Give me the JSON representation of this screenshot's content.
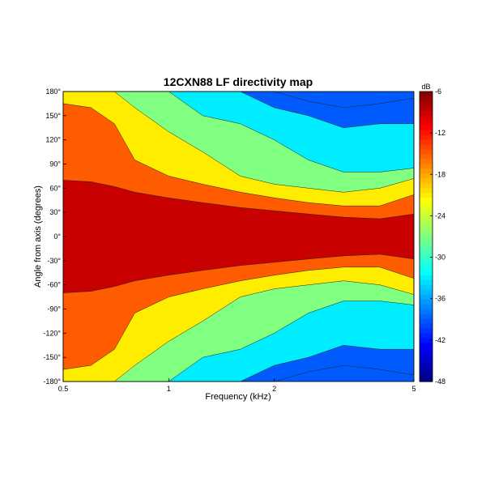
{
  "chart_data": {
    "type": "heatmap",
    "title": "12CXN88 LF directivity map",
    "xlabel": "Frequency (kHz)",
    "ylabel": "Angle from axis (degrees)",
    "x_scale": "log",
    "xlim": [
      0.5,
      5
    ],
    "ylim": [
      -180,
      180
    ],
    "x_ticks": [
      {
        "value": 0.5,
        "label": "0.5"
      },
      {
        "value": 1,
        "label": "1"
      },
      {
        "value": 2,
        "label": "2"
      },
      {
        "value": 5,
        "label": "5"
      }
    ],
    "y_ticks": [
      {
        "value": 180,
        "label": "180°"
      },
      {
        "value": 150,
        "label": "150°"
      },
      {
        "value": 120,
        "label": "120°"
      },
      {
        "value": 90,
        "label": "90°"
      },
      {
        "value": 60,
        "label": "60°"
      },
      {
        "value": 30,
        "label": "30°"
      },
      {
        "value": 0,
        "label": "0°"
      },
      {
        "value": -30,
        "label": "-30°"
      },
      {
        "value": -60,
        "label": "-60°"
      },
      {
        "value": -90,
        "label": "-90°"
      },
      {
        "value": -120,
        "label": "-120°"
      },
      {
        "value": -150,
        "label": "-150°"
      },
      {
        "value": -180,
        "label": "-180°"
      }
    ],
    "colorbar": {
      "unit": "dB",
      "range": [
        -48,
        -6
      ],
      "ticks": [
        {
          "value": -6,
          "label": "-6"
        },
        {
          "value": -12,
          "label": "-12"
        },
        {
          "value": -18,
          "label": "-18"
        },
        {
          "value": -24,
          "label": "-24"
        },
        {
          "value": -30,
          "label": "-30"
        },
        {
          "value": -36,
          "label": "-36"
        },
        {
          "value": -42,
          "label": "-42"
        },
        {
          "value": -48,
          "label": "-48"
        }
      ]
    },
    "grid": false,
    "symmetric_about_zero": true,
    "frequencies_khz": [
      0.5,
      0.6,
      0.7,
      0.8,
      1.0,
      1.25,
      1.6,
      2.0,
      2.5,
      3.15,
      4.0,
      5.0
    ],
    "contour_boundaries": [
      {
        "level_db": -6,
        "angle_deg": [
          70,
          68,
          62,
          55,
          48,
          42,
          36,
          32,
          28,
          24,
          22,
          28
        ]
      },
      {
        "level_db": -12,
        "angle_deg": [
          165,
          160,
          140,
          95,
          75,
          65,
          55,
          48,
          42,
          38,
          38,
          52
        ]
      },
      {
        "level_db": -18,
        "angle_deg": [
          180,
          180,
          180,
          160,
          130,
          105,
          75,
          65,
          60,
          55,
          60,
          72
        ]
      },
      {
        "level_db": -24,
        "angle_deg": [
          180,
          180,
          180,
          180,
          180,
          150,
          140,
          120,
          95,
          80,
          80,
          85
        ]
      },
      {
        "level_db": -30,
        "angle_deg": [
          180,
          180,
          180,
          180,
          180,
          180,
          180,
          160,
          150,
          135,
          140,
          140
        ]
      },
      {
        "level_db": -36,
        "angle_deg": [
          180,
          180,
          180,
          180,
          180,
          180,
          180,
          180,
          168,
          160,
          165,
          172
        ]
      }
    ]
  }
}
